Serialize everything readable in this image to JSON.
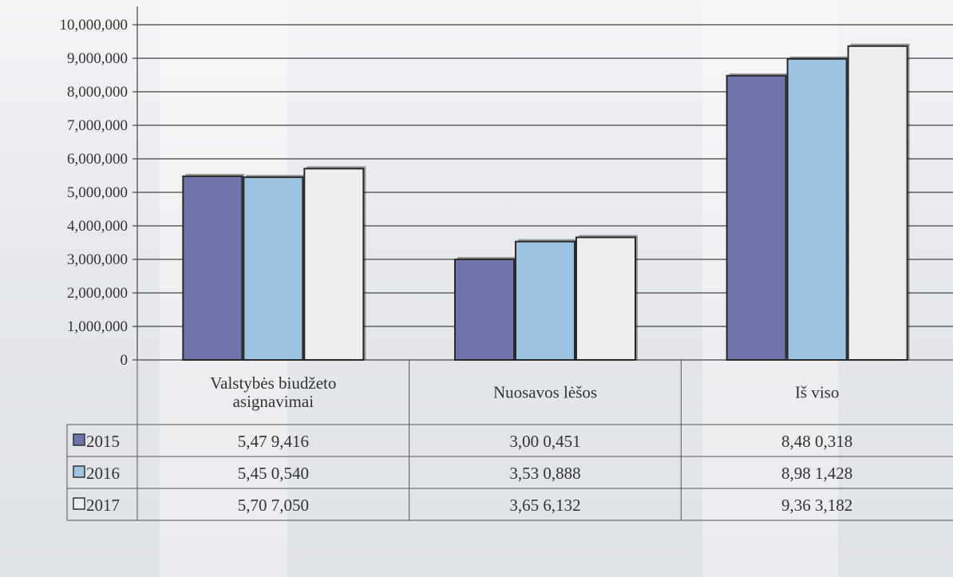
{
  "chart_data": {
    "type": "bar",
    "categories": [
      [
        "Valstybės biudžeto",
        "asignavimai"
      ],
      [
        "Nuosavos lėšos"
      ],
      [
        "Iš viso"
      ]
    ],
    "series": [
      {
        "name": "2015",
        "values": [
          5479416,
          3000451,
          8480318
        ],
        "labels": [
          "5,47 9,416",
          "3,00 0,451",
          "8,48 0,318"
        ],
        "color": "#6f75ab"
      },
      {
        "name": "2016",
        "values": [
          5450540,
          3530888,
          8981428
        ],
        "labels": [
          "5,45 0,540",
          "3,53 0,888",
          "8,98 1,428"
        ],
        "color": "#9dc3e2"
      },
      {
        "name": "2017",
        "values": [
          5707050,
          3656132,
          9363182
        ],
        "labels": [
          "5,70 7,050",
          "3,65 6,132",
          "9,36 3,182"
        ],
        "color": "#eeeeee"
      }
    ],
    "yticks": [
      "0",
      "1,000,000",
      "2,000,000",
      "3,000,000",
      "4,000,000",
      "5,000,000",
      "6,000,000",
      "7,000,000",
      "8,000,000",
      "9,000,000",
      "10,000,000"
    ],
    "ylim": [
      0,
      10000000
    ],
    "grid": true,
    "legend": "data-table"
  }
}
